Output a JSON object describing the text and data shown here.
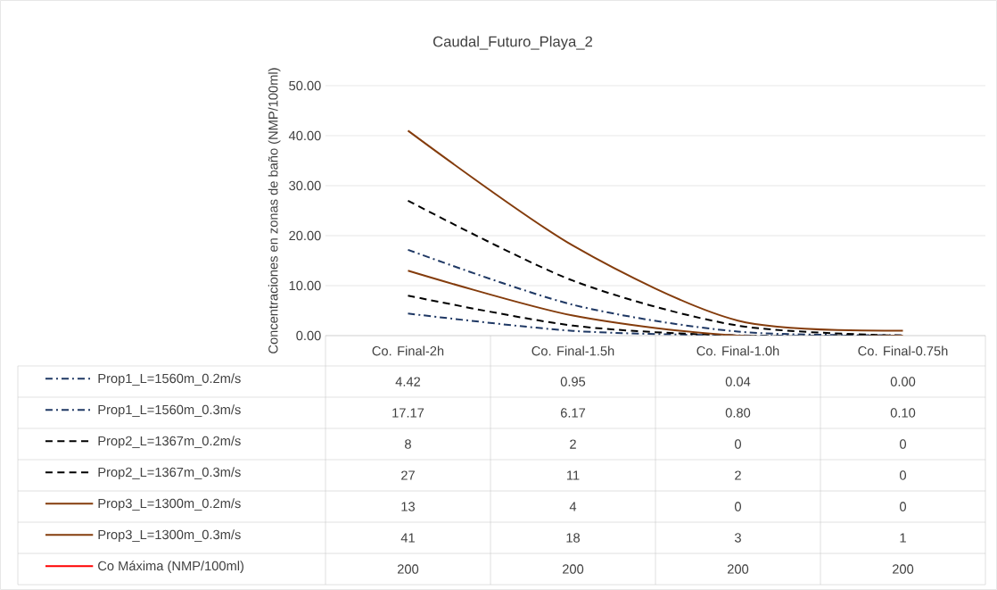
{
  "chart_data": {
    "type": "line",
    "title": "Caudal_Futuro_Playa_2",
    "ylabel": "Concentraciones  en zonas de baño (NMP/100ml)",
    "categories": [
      "Co. Final-2h",
      "Co. Final-1.5h",
      "Co. Final-1.0h",
      "Co. Final-0.75h"
    ],
    "ylim": [
      0,
      50
    ],
    "yticks": [
      {
        "value": 0,
        "label": "0.00"
      },
      {
        "value": 10,
        "label": "10.00"
      },
      {
        "value": 20,
        "label": "20.00"
      },
      {
        "value": 30,
        "label": "30.00"
      },
      {
        "value": 40,
        "label": "40.00"
      },
      {
        "value": 50,
        "label": "50.00"
      }
    ],
    "grid": "y",
    "legend": "bottom",
    "series": [
      {
        "name": "Prop1_L=1560m_0.2m/s",
        "color": "#1f3864",
        "line_style": "dashdot",
        "values": [
          4.42,
          0.95,
          0.04,
          0.0
        ],
        "value_labels": [
          "4.42",
          "0.95",
          "0.04",
          "0.00"
        ]
      },
      {
        "name": "Prop1_L=1560m_0.3m/s",
        "color": "#1f3864",
        "line_style": "dashdot",
        "values": [
          17.17,
          6.17,
          0.8,
          0.1
        ],
        "value_labels": [
          "17.17",
          "6.17",
          "0.80",
          "0.10"
        ]
      },
      {
        "name": "Prop2_L=1367m_0.2m/s",
        "color": "#000000",
        "line_style": "dashed",
        "values": [
          8,
          2,
          0,
          0
        ],
        "value_labels": [
          "8",
          "2",
          "0",
          "0"
        ]
      },
      {
        "name": "Prop2_L=1367m_0.3m/s",
        "color": "#000000",
        "line_style": "dashed",
        "values": [
          27,
          11,
          2,
          0
        ],
        "value_labels": [
          "27",
          "11",
          "2",
          "0"
        ]
      },
      {
        "name": "Prop3_L=1300m_0.2m/s",
        "color": "#843c0c",
        "line_style": "solid",
        "values": [
          13,
          4,
          0,
          0
        ],
        "value_labels": [
          "13",
          "4",
          "0",
          "0"
        ]
      },
      {
        "name": "Prop3_L=1300m_0.3m/s",
        "color": "#843c0c",
        "line_style": "solid",
        "values": [
          41,
          18,
          3,
          1
        ],
        "value_labels": [
          "41",
          "18",
          "3",
          "1"
        ]
      },
      {
        "name": "Co Máxima (NMP/100ml)",
        "color": "#ff0000",
        "line_style": "solid",
        "values": [
          null,
          null,
          null,
          null
        ],
        "value_labels": [
          "200",
          "200",
          "200",
          "200"
        ]
      }
    ]
  }
}
